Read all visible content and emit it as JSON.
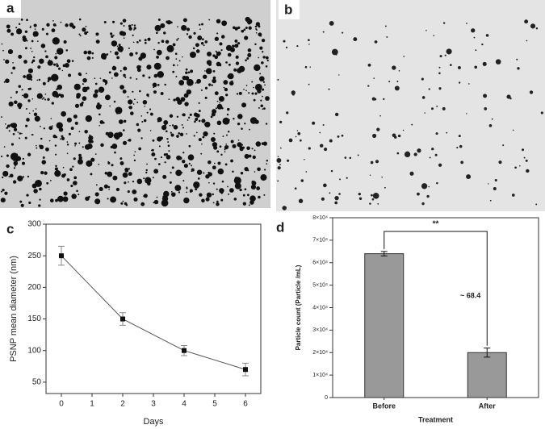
{
  "panel_labels": [
    "a",
    "b",
    "c",
    "d"
  ],
  "chart_data": [
    {
      "type": "line",
      "x_label": "Days",
      "y_label": "PSNP mean diameter (nm)",
      "x": [
        0,
        2,
        4,
        6
      ],
      "values": [
        250,
        150,
        100,
        70
      ],
      "errors": [
        15,
        10,
        8,
        10
      ],
      "color": "#555555",
      "xlim": [
        -0.5,
        6.5
      ],
      "xticks": [
        0,
        1,
        2,
        3,
        4,
        5,
        6
      ],
      "ylim": [
        32,
        300
      ],
      "yticks": [
        50,
        100,
        150,
        200,
        250,
        300
      ]
    },
    {
      "type": "bar",
      "x_label": "Treatment",
      "y_label": "Particle count (Particle /mL)",
      "categories": [
        "Before",
        "After"
      ],
      "values": [
        64000,
        20000
      ],
      "errors": [
        1000,
        2000
      ],
      "color": "#999999",
      "ylim": [
        0,
        80000
      ],
      "yticks": [
        0,
        {
          "value": 10000,
          "label": "1×10⁴"
        },
        {
          "value": 20000,
          "label": "2×10⁴"
        },
        {
          "value": 30000,
          "label": "3×10⁴"
        },
        {
          "value": 40000,
          "label": "4×10⁴"
        },
        {
          "value": 50000,
          "label": "5×10⁴"
        },
        {
          "value": 60000,
          "label": "6×10⁴"
        },
        {
          "value": 70000,
          "label": "7×10⁴"
        },
        {
          "value": 80000,
          "label": "8×10⁴"
        }
      ],
      "annotations": [
        "**",
        "~ 68.4"
      ]
    }
  ]
}
